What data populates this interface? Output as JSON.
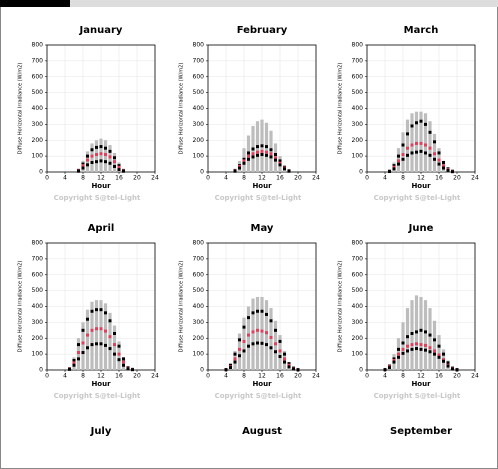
{
  "chart_data": [
    {
      "type": "range",
      "title": "January",
      "xlabel": "Hour",
      "ylabel": "Diffuse Horizontal Irradiance (W/m2)",
      "copyright": "Copyright S@tel-Light",
      "x": [
        7,
        8,
        9,
        10,
        11,
        12,
        13,
        14,
        15,
        16,
        17
      ],
      "bar_high": [
        20,
        70,
        130,
        180,
        200,
        210,
        200,
        170,
        120,
        60,
        15
      ],
      "upper": [
        10,
        50,
        100,
        140,
        155,
        160,
        150,
        130,
        90,
        40,
        10
      ],
      "mean": [
        8,
        40,
        75,
        100,
        110,
        115,
        110,
        95,
        65,
        30,
        8
      ],
      "lower": [
        5,
        25,
        45,
        60,
        65,
        70,
        65,
        55,
        35,
        15,
        5
      ],
      "bar_color": "#bdbdbd",
      "upper_color": "#000000",
      "mean_color": "#e0405a",
      "lower_color": "#000000",
      "xlim": [
        0,
        24
      ],
      "xticks": [
        0,
        4,
        8,
        12,
        16,
        20,
        24
      ],
      "ylim": [
        0,
        800
      ],
      "yticks": [
        0,
        100,
        200,
        300,
        400,
        500,
        600,
        700,
        800
      ],
      "grid": true
    },
    {
      "type": "range",
      "title": "February",
      "xlabel": "Hour",
      "ylabel": "Diffuse Horizontal Irradiance (W/m2)",
      "copyright": "Copyright S@tel-Light",
      "x": [
        6,
        7,
        8,
        9,
        10,
        11,
        12,
        13,
        14,
        15,
        16,
        17,
        18
      ],
      "bar_high": [
        15,
        70,
        150,
        230,
        290,
        320,
        330,
        310,
        260,
        180,
        100,
        40,
        10
      ],
      "upper": [
        10,
        40,
        80,
        120,
        145,
        160,
        165,
        160,
        140,
        110,
        70,
        30,
        8
      ],
      "mean": [
        8,
        35,
        70,
        100,
        115,
        125,
        130,
        125,
        115,
        90,
        55,
        25,
        6
      ],
      "lower": [
        5,
        25,
        55,
        80,
        95,
        105,
        110,
        105,
        95,
        75,
        45,
        20,
        5
      ],
      "bar_color": "#bdbdbd",
      "upper_color": "#000000",
      "mean_color": "#e0405a",
      "lower_color": "#000000",
      "xlim": [
        0,
        24
      ],
      "xticks": [
        0,
        4,
        8,
        12,
        16,
        20,
        24
      ],
      "ylim": [
        0,
        800
      ],
      "yticks": [
        0,
        100,
        200,
        300,
        400,
        500,
        600,
        700,
        800
      ],
      "grid": true
    },
    {
      "type": "range",
      "title": "March",
      "xlabel": "Hour",
      "ylabel": "Diffuse Horizontal Irradiance (W/m2)",
      "copyright": "Copyright S@tel-Light",
      "x": [
        5,
        6,
        7,
        8,
        9,
        10,
        11,
        12,
        13,
        14,
        15,
        16,
        17,
        18,
        19
      ],
      "bar_high": [
        10,
        60,
        150,
        250,
        330,
        370,
        380,
        380,
        370,
        320,
        240,
        150,
        70,
        20,
        5
      ],
      "upper": [
        5,
        40,
        100,
        170,
        240,
        290,
        310,
        320,
        300,
        250,
        190,
        120,
        60,
        20,
        5
      ],
      "mean": [
        4,
        30,
        70,
        110,
        150,
        170,
        180,
        180,
        170,
        150,
        115,
        75,
        40,
        15,
        3
      ],
      "lower": [
        3,
        20,
        50,
        80,
        105,
        120,
        125,
        130,
        120,
        105,
        80,
        50,
        25,
        10,
        2
      ],
      "bar_color": "#bdbdbd",
      "upper_color": "#000000",
      "mean_color": "#e0405a",
      "lower_color": "#000000",
      "xlim": [
        0,
        24
      ],
      "xticks": [
        0,
        4,
        8,
        12,
        16,
        20,
        24
      ],
      "ylim": [
        0,
        800
      ],
      "yticks": [
        0,
        100,
        200,
        300,
        400,
        500,
        600,
        700,
        800
      ],
      "grid": true
    },
    {
      "type": "range",
      "title": "April",
      "xlabel": "Hour",
      "ylabel": "Diffuse Horizontal Irradiance (W/m2)",
      "copyright": "Copyright S@tel-Light",
      "x": [
        5,
        6,
        7,
        8,
        9,
        10,
        11,
        12,
        13,
        14,
        15,
        16,
        17,
        18,
        19
      ],
      "bar_high": [
        10,
        80,
        200,
        300,
        380,
        430,
        440,
        440,
        420,
        360,
        280,
        180,
        80,
        20,
        5
      ],
      "upper": [
        8,
        60,
        160,
        250,
        320,
        370,
        380,
        380,
        360,
        310,
        230,
        150,
        70,
        15,
        4
      ],
      "mean": [
        6,
        45,
        110,
        170,
        220,
        250,
        260,
        260,
        245,
        210,
        160,
        100,
        50,
        12,
        3
      ],
      "lower": [
        4,
        30,
        70,
        110,
        140,
        160,
        165,
        165,
        155,
        135,
        100,
        65,
        30,
        8,
        2
      ],
      "bar_color": "#bdbdbd",
      "upper_color": "#000000",
      "mean_color": "#e0405a",
      "lower_color": "#000000",
      "xlim": [
        0,
        24
      ],
      "xticks": [
        0,
        4,
        8,
        12,
        16,
        20,
        24
      ],
      "ylim": [
        0,
        800
      ],
      "yticks": [
        0,
        100,
        200,
        300,
        400,
        500,
        600,
        700,
        800
      ],
      "grid": true
    },
    {
      "type": "range",
      "title": "May",
      "xlabel": "Hour",
      "ylabel": "Diffuse Horizontal Irradiance (W/m2)",
      "copyright": "Copyright S@tel-Light",
      "x": [
        4,
        5,
        6,
        7,
        8,
        9,
        10,
        11,
        12,
        13,
        14,
        15,
        16,
        17,
        18,
        19,
        20
      ],
      "bar_high": [
        5,
        40,
        120,
        230,
        330,
        400,
        450,
        460,
        460,
        440,
        390,
        310,
        220,
        120,
        50,
        15,
        5
      ],
      "upper": [
        3,
        30,
        100,
        190,
        270,
        330,
        360,
        370,
        370,
        350,
        310,
        250,
        180,
        100,
        40,
        12,
        3
      ],
      "mean": [
        2,
        20,
        70,
        130,
        180,
        220,
        240,
        250,
        245,
        235,
        205,
        165,
        120,
        70,
        30,
        8,
        2
      ],
      "lower": [
        2,
        15,
        50,
        90,
        120,
        150,
        165,
        170,
        168,
        160,
        140,
        115,
        85,
        50,
        20,
        6,
        1
      ],
      "bar_color": "#bdbdbd",
      "upper_color": "#000000",
      "mean_color": "#e0405a",
      "lower_color": "#000000",
      "xlim": [
        0,
        24
      ],
      "xticks": [
        0,
        4,
        8,
        12,
        16,
        20,
        24
      ],
      "ylim": [
        0,
        800
      ],
      "yticks": [
        0,
        100,
        200,
        300,
        400,
        500,
        600,
        700,
        800
      ],
      "grid": true
    },
    {
      "type": "range",
      "title": "June",
      "xlabel": "Hour",
      "ylabel": "Diffuse Horizontal Irradiance (W/m2)",
      "copyright": "Copyright S@tel-Light",
      "x": [
        4,
        5,
        6,
        7,
        8,
        9,
        10,
        11,
        12,
        13,
        14,
        15,
        16,
        17,
        18,
        19,
        20
      ],
      "bar_high": [
        5,
        30,
        100,
        200,
        300,
        390,
        440,
        470,
        460,
        440,
        390,
        310,
        220,
        130,
        60,
        15,
        5
      ],
      "upper": [
        3,
        25,
        70,
        130,
        170,
        210,
        230,
        240,
        250,
        240,
        220,
        190,
        150,
        100,
        45,
        12,
        3
      ],
      "mean": [
        2,
        20,
        60,
        100,
        130,
        150,
        160,
        165,
        160,
        155,
        140,
        120,
        95,
        65,
        30,
        8,
        2
      ],
      "lower": [
        2,
        15,
        50,
        80,
        105,
        120,
        130,
        135,
        130,
        125,
        115,
        100,
        80,
        55,
        25,
        6,
        1
      ],
      "bar_color": "#bdbdbd",
      "upper_color": "#000000",
      "mean_color": "#e0405a",
      "lower_color": "#000000",
      "xlim": [
        0,
        24
      ],
      "xticks": [
        0,
        4,
        8,
        12,
        16,
        20,
        24
      ],
      "ylim": [
        0,
        800
      ],
      "yticks": [
        0,
        100,
        200,
        300,
        400,
        500,
        600,
        700,
        800
      ],
      "grid": true
    }
  ],
  "more_titles": [
    "July",
    "August",
    "September"
  ]
}
